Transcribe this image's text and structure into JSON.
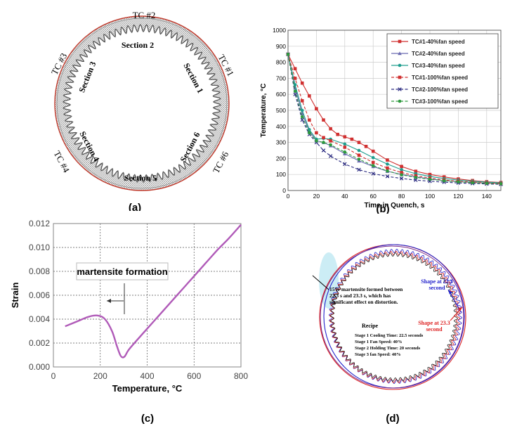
{
  "panels": {
    "a": {
      "label": "(a)",
      "thermocouples": [
        "TC #2",
        "TC #1",
        "TC #3",
        "TC #4",
        "TC #6"
      ],
      "sections": [
        "Section 2",
        "Section 1",
        "Section 3",
        "Section 4",
        "Section 5",
        "Section 6"
      ],
      "colors": {
        "outer_ring": "#c0392b",
        "teeth": "#555555",
        "hatch": "#9a9a9a"
      }
    },
    "b": {
      "label": "(b)"
    },
    "c": {
      "label": "(c)",
      "annotation": "martensite formation"
    },
    "d": {
      "label": "(d)",
      "martensite_note": [
        "15% martensite formed between",
        "22.3 s and 23.3 s, which has",
        "significant effect on distortion."
      ],
      "shape_blue": [
        "Shape at 22.3",
        "second"
      ],
      "shape_red": [
        "Shape at 23.3",
        "second"
      ],
      "recipe_title": "Recipe",
      "recipe_lines": [
        "Stage 1 Cooling Time: 22.5 seconds",
        "Stage 1 Fan Speed: 40%",
        "Stage 2 Holding Time: 20 seconds",
        "Stage 3 fan Speed: 40%"
      ],
      "colors": {
        "blue": "#2222cc",
        "red": "#dd2222",
        "black": "#000000"
      }
    }
  },
  "chart_data": [
    {
      "id": "b",
      "type": "line",
      "title": "",
      "xlabel": "Time in Quench, s",
      "ylabel": "Temperature, °C",
      "xlim": [
        0,
        150
      ],
      "ylim": [
        0,
        1000
      ],
      "xticks": [
        0,
        20,
        40,
        60,
        80,
        100,
        120,
        140
      ],
      "yticks": [
        0,
        100,
        200,
        300,
        400,
        500,
        600,
        700,
        800,
        900,
        1000
      ],
      "legend_position": "top-right",
      "series": [
        {
          "name": "TC#1-40%fan speed",
          "color": "#d03030",
          "dash": "solid",
          "marker": "square",
          "x": [
            0,
            5,
            10,
            15,
            20,
            25,
            30,
            35,
            40,
            45,
            50,
            55,
            60,
            70,
            80,
            90,
            100,
            110,
            120,
            130,
            140,
            150
          ],
          "y": [
            850,
            760,
            670,
            590,
            510,
            440,
            385,
            350,
            335,
            320,
            300,
            275,
            245,
            190,
            150,
            120,
            100,
            85,
            72,
            62,
            55,
            50
          ]
        },
        {
          "name": "TC#2-40%fan speed",
          "color": "#6a6ab0",
          "dash": "solid",
          "marker": "triangle",
          "x": [
            0,
            5,
            10,
            15,
            20,
            25,
            30,
            40,
            50,
            60,
            70,
            80,
            90,
            100,
            110,
            120,
            130,
            140,
            150
          ],
          "y": [
            850,
            640,
            480,
            370,
            310,
            300,
            280,
            230,
            185,
            150,
            120,
            100,
            85,
            72,
            62,
            55,
            50,
            46,
            43
          ]
        },
        {
          "name": "TC#3-40%fan speed",
          "color": "#1e9e8e",
          "dash": "solid",
          "marker": "circle",
          "x": [
            0,
            5,
            10,
            15,
            20,
            25,
            30,
            40,
            50,
            60,
            70,
            80,
            90,
            100,
            110,
            120,
            130,
            140,
            150
          ],
          "y": [
            850,
            660,
            500,
            380,
            320,
            325,
            320,
            290,
            250,
            205,
            165,
            130,
            105,
            88,
            75,
            65,
            58,
            52,
            48
          ]
        },
        {
          "name": "TC#1-100%fan speed",
          "color": "#d03030",
          "dash": "dashed",
          "marker": "square",
          "x": [
            0,
            5,
            10,
            15,
            20,
            25,
            30,
            40,
            50,
            60,
            70,
            80,
            90,
            100,
            110,
            120,
            130,
            140,
            150
          ],
          "y": [
            850,
            700,
            560,
            440,
            360,
            330,
            310,
            270,
            220,
            175,
            140,
            112,
            92,
            78,
            66,
            58,
            52,
            47,
            44
          ]
        },
        {
          "name": "TC#2-100%fan speed",
          "color": "#2a2a80",
          "dash": "dashed",
          "marker": "x",
          "x": [
            0,
            5,
            10,
            15,
            20,
            25,
            30,
            40,
            50,
            60,
            70,
            80,
            90,
            100,
            110,
            120,
            130,
            140,
            150
          ],
          "y": [
            850,
            600,
            440,
            350,
            300,
            250,
            215,
            165,
            130,
            105,
            88,
            75,
            65,
            58,
            52,
            47,
            44,
            41,
            39
          ]
        },
        {
          "name": "TC#3-100%fan speed",
          "color": "#2e9a3e",
          "dash": "dashed",
          "marker": "circle",
          "x": [
            0,
            5,
            10,
            15,
            20,
            25,
            30,
            40,
            50,
            60,
            70,
            80,
            90,
            100,
            110,
            120,
            130,
            140,
            150
          ],
          "y": [
            850,
            620,
            460,
            360,
            310,
            300,
            285,
            240,
            195,
            155,
            122,
            98,
            82,
            70,
            61,
            54,
            49,
            45,
            42
          ]
        }
      ]
    },
    {
      "id": "c",
      "type": "line",
      "title": "",
      "xlabel": "Temperature, °C",
      "ylabel": "Strain",
      "xlim": [
        0,
        800
      ],
      "ylim": [
        0,
        0.012
      ],
      "xticks": [
        0,
        200,
        400,
        600,
        800
      ],
      "yticks": [
        0.0,
        0.002,
        0.004,
        0.006,
        0.008,
        0.01,
        0.012
      ],
      "ytick_labels": [
        "0.000",
        "0.002",
        "0.004",
        "0.006",
        "0.008",
        "0.010",
        "0.012"
      ],
      "grid": true,
      "series": [
        {
          "name": "strain",
          "color": "#b05ab8",
          "x": [
            50,
            100,
            150,
            190,
            220,
            250,
            270,
            285,
            295,
            305,
            320,
            350,
            400,
            450,
            500,
            550,
            600,
            650,
            700,
            750,
            800
          ],
          "y": [
            0.0034,
            0.0038,
            0.0042,
            0.0043,
            0.004,
            0.003,
            0.0018,
            0.001,
            0.0008,
            0.0009,
            0.0014,
            0.0021,
            0.0032,
            0.0043,
            0.0054,
            0.0065,
            0.0076,
            0.0087,
            0.0098,
            0.0108,
            0.0119
          ]
        }
      ]
    }
  ]
}
